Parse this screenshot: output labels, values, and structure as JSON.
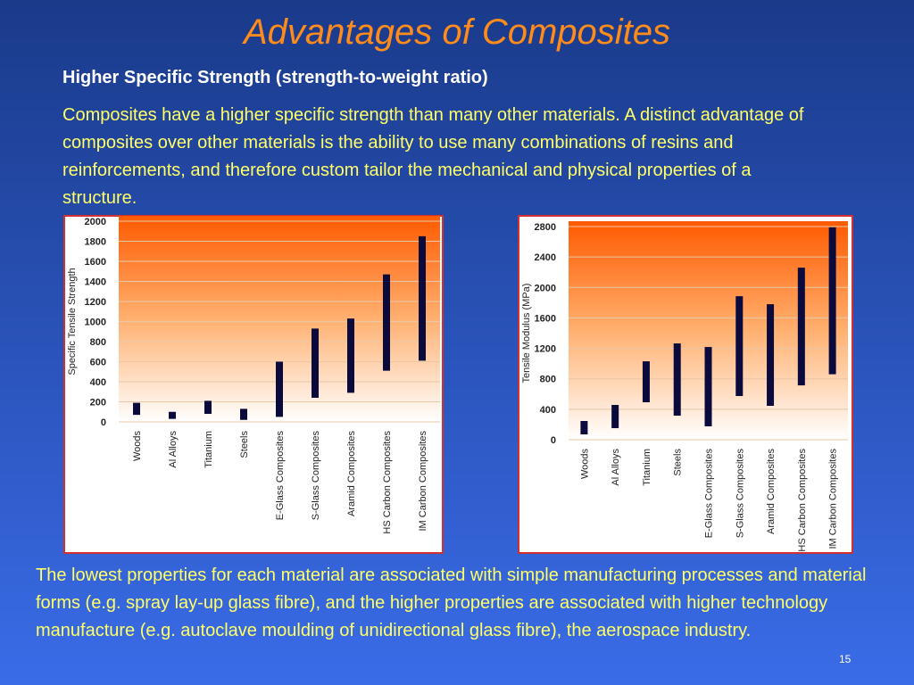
{
  "title": "Advantages of Composites",
  "heading": "Higher Specific Strength (strength-to-weight ratio)",
  "intro": "Composites have a higher specific strength than many other materials. A distinct advantage of composites over other materials is the ability to use many combinations of resins and reinforcements, and therefore custom tailor the mechanical and physical properties of a structure.",
  "conclusion": "The lowest properties for each material are associated with simple manufacturing processes and material forms (e.g. spray lay-up glass fibre), and the higher properties are associated with higher technology manufacture (e.g. autoclave moulding of unidirectional glass fibre), the aerospace industry.",
  "page_number": "15",
  "chart_data": [
    {
      "type": "range_bar",
      "y_label": "Specific Tensile Strength",
      "color": "#0a0a3c",
      "categories": [
        "Woods",
        "Al Alloys",
        "Titanium",
        "Steels",
        "E-Glass Composites",
        "S-Glass Composites",
        "Aramid Composites",
        "HS Carbon Composites",
        "IM Carbon Composites"
      ],
      "values": [
        [
          70,
          190
        ],
        [
          30,
          100
        ],
        [
          80,
          210
        ],
        [
          20,
          130
        ],
        [
          50,
          600
        ],
        [
          240,
          930
        ],
        [
          290,
          1030
        ],
        [
          510,
          1470
        ],
        [
          610,
          1850
        ]
      ],
      "ylim": [
        0,
        2000
      ],
      "yticks": [
        0,
        200,
        400,
        600,
        800,
        1000,
        1200,
        1400,
        1600,
        1800,
        2000
      ],
      "grid": true
    },
    {
      "type": "range_bar",
      "y_label": "Tensile Modulus (MPa)",
      "color": "#0a0a3c",
      "categories": [
        "Woods",
        "Al Alloys",
        "Titanium",
        "Steels",
        "E-Glass Composites",
        "S-Glass Composites",
        "Aramid Composites",
        "HS Carbon Composites",
        "IM Carbon Composites"
      ],
      "values": [
        [
          70,
          246
        ],
        [
          152,
          457
        ],
        [
          492,
          1030
        ],
        [
          316,
          1265
        ],
        [
          176,
          1218
        ],
        [
          574,
          1885
        ],
        [
          445,
          1780
        ],
        [
          714,
          2260
        ],
        [
          860,
          2790
        ]
      ],
      "ylim": [
        0,
        2800
      ],
      "yticks": [
        0,
        400,
        800,
        1200,
        1600,
        2000,
        2400,
        2800
      ],
      "grid": true
    }
  ]
}
